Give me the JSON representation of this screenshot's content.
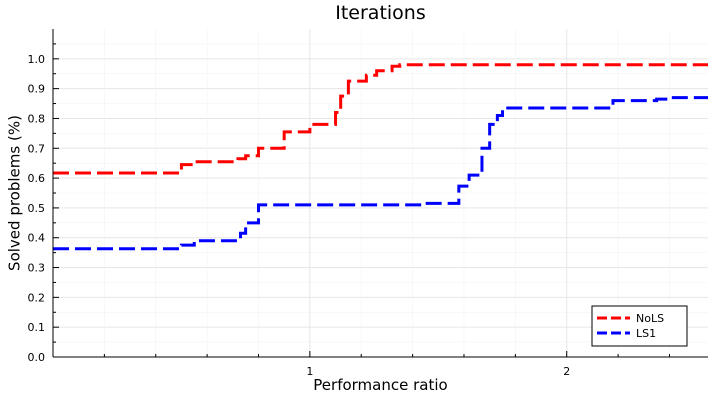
{
  "chart_data": {
    "type": "line",
    "step": true,
    "title": "Iterations",
    "xlabel": "Performance ratio",
    "ylabel": "Solved problems (%)",
    "xlim": [
      0,
      2.55
    ],
    "ylim": [
      0,
      1.1
    ],
    "xticks": [
      1,
      2
    ],
    "xtick_labels": [
      "1",
      "2"
    ],
    "yticks": [
      0,
      0.1,
      0.2,
      0.3,
      0.4,
      0.5,
      0.6,
      0.7,
      0.8,
      0.9,
      1.0
    ],
    "ytick_labels": [
      "0.0",
      "0.1",
      "0.2",
      "0.3",
      "0.4",
      "0.5",
      "0.6",
      "0.7",
      "0.8",
      "0.9",
      "1.0"
    ],
    "grid": true,
    "legend_position": "bottom-right",
    "series": [
      {
        "name": "NoLS",
        "color": "#ff0000",
        "dash": "dashed",
        "x": [
          0,
          0.45,
          0.5,
          0.55,
          0.65,
          0.72,
          0.75,
          0.8,
          0.87,
          0.9,
          0.96,
          1.0,
          1.06,
          1.1,
          1.12,
          1.15,
          1.22,
          1.26,
          1.32,
          1.35,
          2.55
        ],
        "y": [
          0.617,
          0.617,
          0.645,
          0.655,
          0.655,
          0.665,
          0.675,
          0.7,
          0.7,
          0.755,
          0.755,
          0.78,
          0.78,
          0.82,
          0.875,
          0.925,
          0.945,
          0.96,
          0.975,
          0.98,
          0.98
        ]
      },
      {
        "name": "LS1",
        "color": "#0000ff",
        "dash": "dashed",
        "x": [
          0,
          0.45,
          0.5,
          0.55,
          0.6,
          0.7,
          0.73,
          0.75,
          0.8,
          0.9,
          1.0,
          1.2,
          1.4,
          1.45,
          1.5,
          1.58,
          1.62,
          1.67,
          1.7,
          1.73,
          1.75,
          1.78,
          2.15,
          2.18,
          2.35,
          2.4,
          2.55
        ],
        "y": [
          0.363,
          0.363,
          0.375,
          0.39,
          0.39,
          0.39,
          0.415,
          0.45,
          0.51,
          0.51,
          0.51,
          0.51,
          0.51,
          0.515,
          0.515,
          0.573,
          0.61,
          0.7,
          0.78,
          0.81,
          0.835,
          0.835,
          0.835,
          0.86,
          0.865,
          0.87,
          0.87
        ]
      }
    ]
  }
}
